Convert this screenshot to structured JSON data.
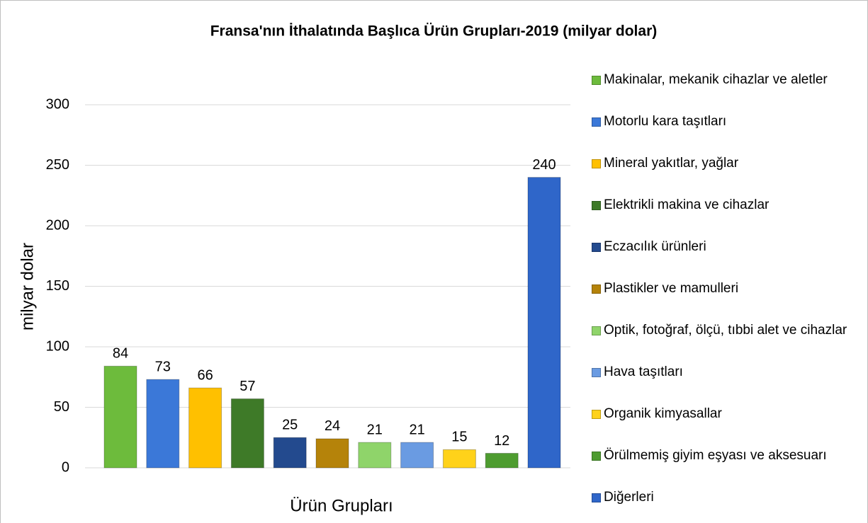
{
  "chart_data": {
    "type": "bar",
    "title": "Fransa'nın İthalatında Başlıca Ürün Grupları-2019 (milyar dolar)",
    "x_label": "Ürün Grupları",
    "y_label": "milyar dolar",
    "ylim": [
      0,
      300
    ],
    "yticks": [
      0,
      50,
      100,
      150,
      200,
      250,
      300
    ],
    "grid": true,
    "legend": "right",
    "series": [
      {
        "name": "Makinalar, mekanik cihazlar ve aletler",
        "color": "#6dbb3c",
        "values": [
          84
        ]
      },
      {
        "name": "Motorlu kara taşıtları",
        "color": "#3b78d8",
        "values": [
          73
        ]
      },
      {
        "name": "Mineral yakıtlar, yağlar",
        "color": "#ffc000",
        "values": [
          66
        ]
      },
      {
        "name": "Elektrikli makina ve cihazlar",
        "color": "#3e7a28",
        "values": [
          57
        ]
      },
      {
        "name": "Eczacılık ürünleri",
        "color": "#234a8e",
        "values": [
          25
        ]
      },
      {
        "name": "Plastikler ve mamulleri",
        "color": "#b5830a",
        "values": [
          24
        ]
      },
      {
        "name": "Optik, fotoğraf, ölçü, tıbbi alet ve cihazlar",
        "color": "#8fd46a",
        "values": [
          21
        ]
      },
      {
        "name": "Hava taşıtları",
        "color": "#6a9be2",
        "values": [
          21
        ]
      },
      {
        "name": "Organik kimyasallar",
        "color": "#ffd21a",
        "values": [
          15
        ]
      },
      {
        "name": "Örülmemiş giyim eşyası ve aksesuarı",
        "color": "#4e9c30",
        "values": [
          12
        ]
      },
      {
        "name": "Diğerleri",
        "color": "#2f66c9",
        "values": [
          240
        ]
      }
    ]
  }
}
